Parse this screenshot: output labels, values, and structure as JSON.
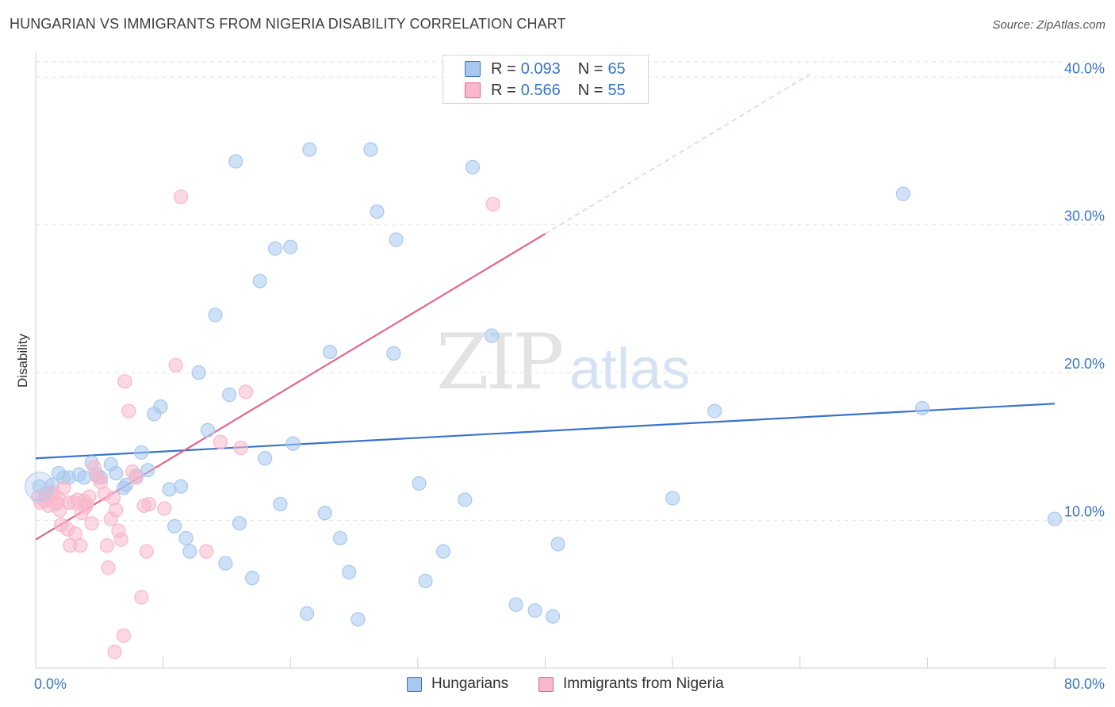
{
  "title": "HUNGARIAN VS IMMIGRANTS FROM NIGERIA DISABILITY CORRELATION CHART",
  "source": "Source: ZipAtlas.com",
  "watermark": {
    "zip": "ZIP",
    "atlas": "atlas"
  },
  "legend_top": [
    {
      "r_label": "R =",
      "r_value": "0.093",
      "n_label": "N =",
      "n_value": "65",
      "color": "#a8c8ef"
    },
    {
      "r_label": "R =",
      "r_value": "0.566",
      "n_label": "N =",
      "n_value": "55",
      "color": "#f7b8cb"
    }
  ],
  "legend_bottom": [
    {
      "label": "Hungarians",
      "color": "#a8c8ef"
    },
    {
      "label": "Immigrants from Nigeria",
      "color": "#f7b8cb"
    }
  ],
  "chart_data": {
    "type": "scatter",
    "title": "HUNGARIAN VS IMMIGRANTS FROM NIGERIA DISABILITY CORRELATION CHART",
    "ylabel": "Disability",
    "xlim": [
      0,
      80
    ],
    "ylim": [
      0,
      42
    ],
    "x_tick_labels": [
      "0.0%",
      "80.0%"
    ],
    "y_ticks": [
      10,
      20,
      30,
      40
    ],
    "y_tick_labels": [
      "10.0%",
      "20.0%",
      "30.0%",
      "40.0%"
    ],
    "grid": true,
    "series": [
      {
        "name": "Hungarians",
        "color": "#3a74c8",
        "fill": "#a8c8ef",
        "trend": {
          "x": [
            0,
            80
          ],
          "y": [
            14.2,
            17.9
          ],
          "dashed_from": null
        },
        "points": [
          [
            0.3,
            12.3
          ],
          [
            0.8,
            11.8
          ],
          [
            1.3,
            12.4
          ],
          [
            1.8,
            13.2
          ],
          [
            2.2,
            12.9
          ],
          [
            2.6,
            12.9
          ],
          [
            3.4,
            13.1
          ],
          [
            3.8,
            12.9
          ],
          [
            4.4,
            13.9
          ],
          [
            4.8,
            13.1
          ],
          [
            5.1,
            12.9
          ],
          [
            5.9,
            13.8
          ],
          [
            6.3,
            13.2
          ],
          [
            6.9,
            12.2
          ],
          [
            7.1,
            12.4
          ],
          [
            7.9,
            13.0
          ],
          [
            8.3,
            14.6
          ],
          [
            8.8,
            13.4
          ],
          [
            9.3,
            17.2
          ],
          [
            9.8,
            17.7
          ],
          [
            10.5,
            12.1
          ],
          [
            10.9,
            9.6
          ],
          [
            11.4,
            12.3
          ],
          [
            11.8,
            8.8
          ],
          [
            12.1,
            7.9
          ],
          [
            12.8,
            20.0
          ],
          [
            13.5,
            16.1
          ],
          [
            14.1,
            23.9
          ],
          [
            14.9,
            7.1
          ],
          [
            15.2,
            18.5
          ],
          [
            15.7,
            34.3
          ],
          [
            16.0,
            9.8
          ],
          [
            17.0,
            6.1
          ],
          [
            17.6,
            26.2
          ],
          [
            18.0,
            14.2
          ],
          [
            18.8,
            28.4
          ],
          [
            19.2,
            11.1
          ],
          [
            20.0,
            28.5
          ],
          [
            20.2,
            15.2
          ],
          [
            21.3,
            3.7
          ],
          [
            21.5,
            35.1
          ],
          [
            22.7,
            10.5
          ],
          [
            23.1,
            21.4
          ],
          [
            23.9,
            8.8
          ],
          [
            24.6,
            6.5
          ],
          [
            25.3,
            3.3
          ],
          [
            26.3,
            35.1
          ],
          [
            26.8,
            30.9
          ],
          [
            28.3,
            29.0
          ],
          [
            28.1,
            21.3
          ],
          [
            30.1,
            12.5
          ],
          [
            30.6,
            5.9
          ],
          [
            32.0,
            7.9
          ],
          [
            33.7,
            11.4
          ],
          [
            34.3,
            33.9
          ],
          [
            35.8,
            22.5
          ],
          [
            37.7,
            4.3
          ],
          [
            39.2,
            3.9
          ],
          [
            40.6,
            3.5
          ],
          [
            41.0,
            8.4
          ],
          [
            50.0,
            11.5
          ],
          [
            53.3,
            17.4
          ],
          [
            68.1,
            32.1
          ],
          [
            69.6,
            17.6
          ],
          [
            80.0,
            10.1
          ]
        ]
      },
      {
        "name": "Immigrants from Nigeria",
        "color": "#e0668d",
        "fill": "#f7b8cb",
        "trend": {
          "x": [
            0,
            40
          ],
          "y": [
            8.7,
            29.4
          ],
          "dashed_to": [
            60.8,
            40.2
          ]
        },
        "points": [
          [
            0.2,
            11.6
          ],
          [
            0.4,
            11.2
          ],
          [
            0.7,
            11.3
          ],
          [
            0.9,
            11.5
          ],
          [
            1.0,
            11.0
          ],
          [
            1.4,
            11.8
          ],
          [
            1.5,
            11.1
          ],
          [
            1.7,
            11.2
          ],
          [
            1.8,
            11.5
          ],
          [
            1.9,
            10.7
          ],
          [
            2.0,
            9.7
          ],
          [
            2.2,
            12.2
          ],
          [
            2.5,
            9.4
          ],
          [
            2.6,
            11.2
          ],
          [
            2.7,
            8.3
          ],
          [
            3.0,
            11.2
          ],
          [
            3.1,
            9.1
          ],
          [
            3.3,
            11.4
          ],
          [
            3.5,
            8.3
          ],
          [
            3.6,
            10.5
          ],
          [
            3.8,
            11.3
          ],
          [
            4.0,
            11.1
          ],
          [
            4.2,
            11.6
          ],
          [
            4.4,
            9.8
          ],
          [
            4.6,
            13.6
          ],
          [
            4.9,
            12.9
          ],
          [
            5.1,
            12.6
          ],
          [
            5.4,
            11.8
          ],
          [
            5.6,
            8.3
          ],
          [
            5.7,
            6.8
          ],
          [
            5.9,
            10.1
          ],
          [
            6.1,
            11.5
          ],
          [
            6.3,
            10.7
          ],
          [
            6.5,
            9.3
          ],
          [
            6.7,
            8.7
          ],
          [
            6.9,
            2.2
          ],
          [
            7.0,
            19.4
          ],
          [
            7.3,
            17.4
          ],
          [
            7.6,
            13.3
          ],
          [
            7.9,
            12.9
          ],
          [
            8.3,
            4.8
          ],
          [
            8.5,
            11.0
          ],
          [
            8.7,
            7.9
          ],
          [
            8.9,
            11.1
          ],
          [
            10.1,
            10.8
          ],
          [
            11.0,
            20.5
          ],
          [
            11.4,
            31.9
          ],
          [
            13.4,
            7.9
          ],
          [
            14.5,
            15.3
          ],
          [
            16.1,
            14.9
          ],
          [
            16.5,
            18.7
          ],
          [
            35.9,
            31.4
          ],
          [
            6.2,
            1.1
          ],
          [
            1.2,
            11.9
          ],
          [
            3.9,
            10.9
          ]
        ]
      }
    ]
  }
}
